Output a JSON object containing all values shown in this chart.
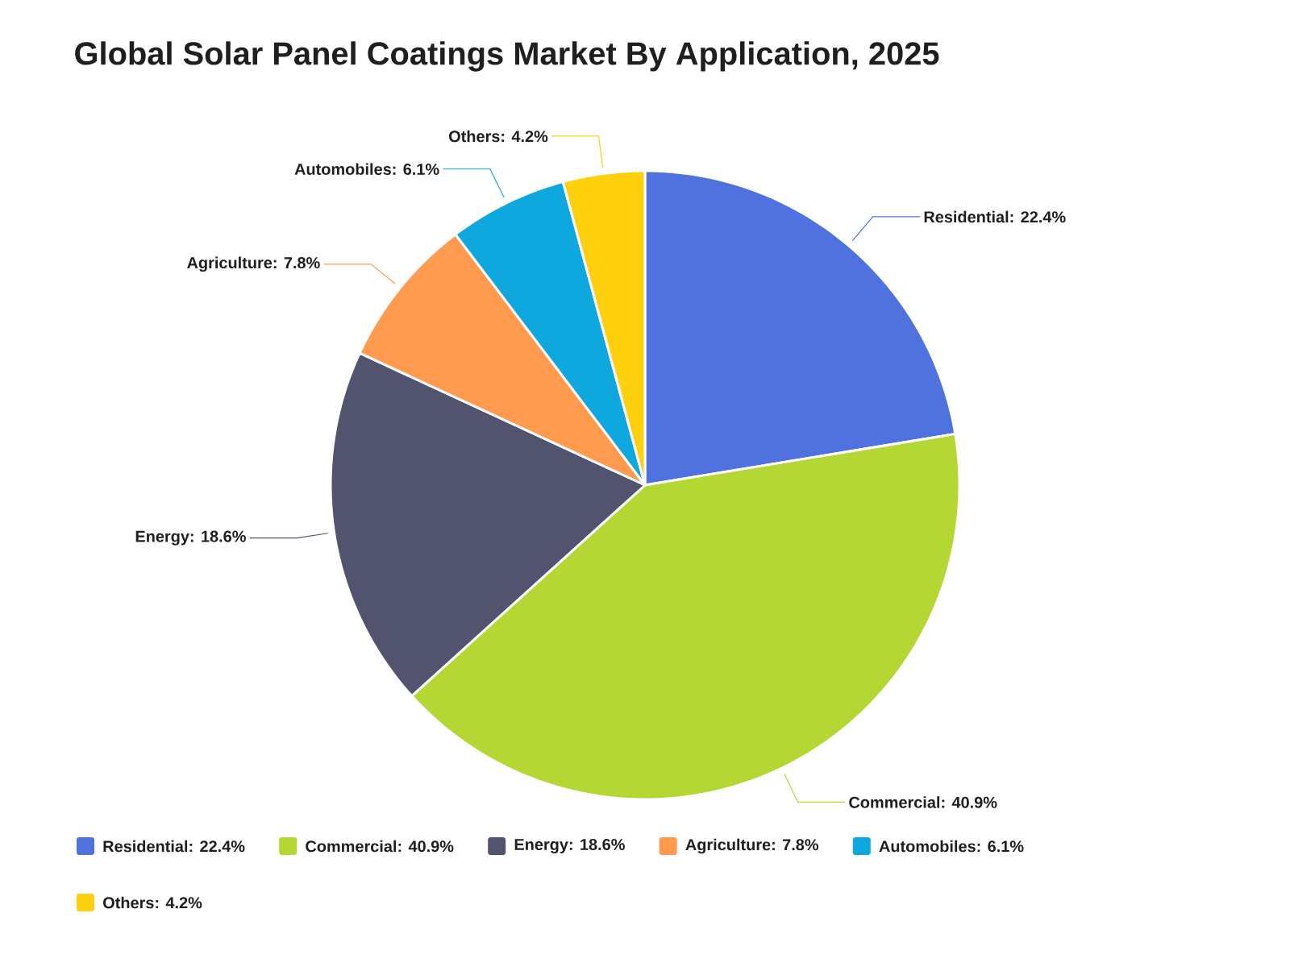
{
  "chart_data": {
    "type": "pie",
    "title": "Global Solar Panel Coatings Market By Application, 2025",
    "categories": [
      "Residential",
      "Commercial",
      "Energy",
      "Agriculture",
      "Automobiles",
      "Others"
    ],
    "values": [
      22.4,
      40.9,
      18.6,
      7.8,
      6.1,
      4.2
    ],
    "colors": [
      "#5072df",
      "#b5d733",
      "#51536f",
      "#ff9a4f",
      "#0ea8de",
      "#ffd00e"
    ],
    "value_labels": [
      ": 22.4%",
      ": 40.9%",
      ": 18.6%",
      ": 7.8%",
      ": 6.1%",
      ": 4.2%"
    ],
    "legend": "bottom"
  }
}
